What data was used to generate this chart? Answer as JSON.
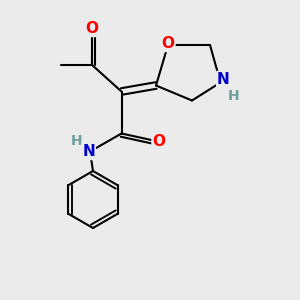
{
  "bg_color": "#ebebeb",
  "bond_color": "#000000",
  "O_color": "#ff0000",
  "N_color": "#0000cc",
  "H_color": "#6e9e9e",
  "line_width": 1.5,
  "font_size_atom": 11,
  "xlim": [
    0,
    10
  ],
  "ylim": [
    0,
    10
  ]
}
